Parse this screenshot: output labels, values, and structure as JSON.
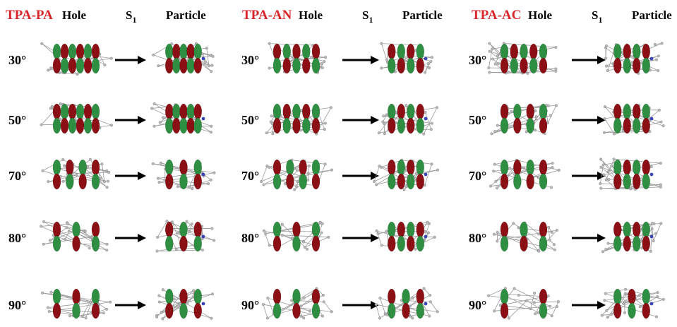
{
  "panels": [
    {
      "title": "TPA-PA",
      "hole": "Hole",
      "state": "S",
      "state_sub": "1",
      "particle": "Particle"
    },
    {
      "title": "TPA-AN",
      "hole": "Hole",
      "state": "S",
      "state_sub": "1",
      "particle": "Particle"
    },
    {
      "title": "TPA-AC",
      "hole": "Hole",
      "state": "S",
      "state_sub": "1",
      "particle": "Particle"
    }
  ],
  "angles": [
    "30°",
    "50°",
    "70°",
    "80°",
    "90°"
  ],
  "colors": {
    "title": "#d9262b",
    "lobe_red": "#8b0f14",
    "lobe_green": "#2e8f43",
    "atom_grey": "#b9b9b9",
    "nitrogen": "#3a46b8"
  },
  "icons": {
    "arrow": "right-arrow-icon",
    "orbital": "orbital-density-icon"
  }
}
